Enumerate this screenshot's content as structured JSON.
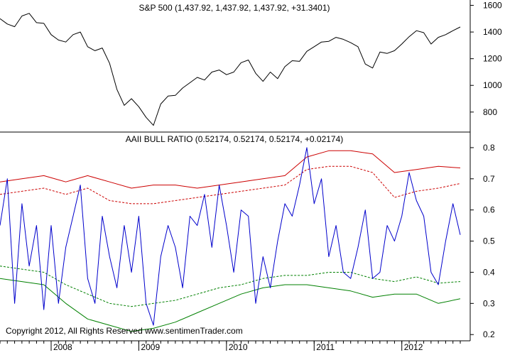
{
  "chart_data": [
    {
      "type": "line",
      "title": "S&P 500 (1,437.92, 1,437.92, 1,437.92, +31.3401)",
      "ylim": [
        650,
        1640
      ],
      "yticks": [
        800,
        1000,
        1200,
        1400,
        1600
      ],
      "grid": false,
      "x_range": [
        "2007-06",
        "2012-09"
      ],
      "series": [
        {
          "color": "#000000",
          "points": [
            [
              "2007-06",
              1500
            ],
            [
              "2007-07",
              1460
            ],
            [
              "2007-08",
              1440
            ],
            [
              "2007-09",
              1520
            ],
            [
              "2007-10",
              1540
            ],
            [
              "2007-11",
              1470
            ],
            [
              "2007-12",
              1465
            ],
            [
              "2008-01",
              1380
            ],
            [
              "2008-02",
              1340
            ],
            [
              "2008-03",
              1325
            ],
            [
              "2008-04",
              1380
            ],
            [
              "2008-05",
              1400
            ],
            [
              "2008-06",
              1290
            ],
            [
              "2008-07",
              1260
            ],
            [
              "2008-08",
              1280
            ],
            [
              "2008-09",
              1165
            ],
            [
              "2008-10",
              970
            ],
            [
              "2008-11",
              850
            ],
            [
              "2008-12",
              900
            ],
            [
              "2009-01",
              840
            ],
            [
              "2009-02",
              760
            ],
            [
              "2009-03",
              700
            ],
            [
              "2009-04",
              860
            ],
            [
              "2009-05",
              920
            ],
            [
              "2009-06",
              925
            ],
            [
              "2009-07",
              980
            ],
            [
              "2009-08",
              1020
            ],
            [
              "2009-09",
              1060
            ],
            [
              "2009-10",
              1040
            ],
            [
              "2009-11",
              1100
            ],
            [
              "2009-12",
              1115
            ],
            [
              "2010-01",
              1080
            ],
            [
              "2010-02",
              1100
            ],
            [
              "2010-03",
              1170
            ],
            [
              "2010-04",
              1190
            ],
            [
              "2010-05",
              1090
            ],
            [
              "2010-06",
              1030
            ],
            [
              "2010-07",
              1100
            ],
            [
              "2010-08",
              1050
            ],
            [
              "2010-09",
              1140
            ],
            [
              "2010-10",
              1185
            ],
            [
              "2010-11",
              1180
            ],
            [
              "2010-12",
              1255
            ],
            [
              "2011-01",
              1290
            ],
            [
              "2011-02",
              1325
            ],
            [
              "2011-03",
              1330
            ],
            [
              "2011-04",
              1360
            ],
            [
              "2011-05",
              1345
            ],
            [
              "2011-06",
              1320
            ],
            [
              "2011-07",
              1290
            ],
            [
              "2011-08",
              1160
            ],
            [
              "2011-09",
              1130
            ],
            [
              "2011-10",
              1250
            ],
            [
              "2011-11",
              1240
            ],
            [
              "2011-12",
              1260
            ],
            [
              "2012-01",
              1310
            ],
            [
              "2012-02",
              1365
            ],
            [
              "2012-03",
              1410
            ],
            [
              "2012-04",
              1395
            ],
            [
              "2012-05",
              1310
            ],
            [
              "2012-06",
              1360
            ],
            [
              "2012-07",
              1380
            ],
            [
              "2012-08",
              1410
            ],
            [
              "2012-09",
              1438
            ]
          ]
        }
      ]
    },
    {
      "type": "line",
      "title": "AAII BULL RATIO (0.52174, 0.52174, 0.52174, +0.02174)",
      "ylim": [
        0.18,
        0.85
      ],
      "yticks": [
        0.2,
        0.3,
        0.4,
        0.5,
        0.6,
        0.7,
        0.8
      ],
      "grid": false,
      "x_range": [
        "2007-06",
        "2012-09"
      ],
      "xticks": [
        "2008",
        "2009",
        "2010",
        "2011",
        "2012"
      ],
      "annotation": "Copyright 2012, All Rights Reserved  www.sentimenTrader.com",
      "series": [
        {
          "color": "#cc0000",
          "dashed": false,
          "points": [
            [
              "2007-06",
              0.69
            ],
            [
              "2007-09",
              0.7
            ],
            [
              "2007-12",
              0.71
            ],
            [
              "2008-03",
              0.69
            ],
            [
              "2008-06",
              0.71
            ],
            [
              "2008-09",
              0.69
            ],
            [
              "2008-12",
              0.67
            ],
            [
              "2009-03",
              0.68
            ],
            [
              "2009-06",
              0.68
            ],
            [
              "2009-09",
              0.67
            ],
            [
              "2009-12",
              0.68
            ],
            [
              "2010-03",
              0.69
            ],
            [
              "2010-06",
              0.7
            ],
            [
              "2010-09",
              0.71
            ],
            [
              "2010-12",
              0.77
            ],
            [
              "2011-03",
              0.79
            ],
            [
              "2011-06",
              0.79
            ],
            [
              "2011-09",
              0.78
            ],
            [
              "2011-12",
              0.72
            ],
            [
              "2012-03",
              0.73
            ],
            [
              "2012-06",
              0.74
            ],
            [
              "2012-09",
              0.735
            ]
          ]
        },
        {
          "color": "#cc0000",
          "dashed": true,
          "points": [
            [
              "2007-06",
              0.65
            ],
            [
              "2007-09",
              0.66
            ],
            [
              "2007-12",
              0.67
            ],
            [
              "2008-03",
              0.65
            ],
            [
              "2008-06",
              0.67
            ],
            [
              "2008-09",
              0.63
            ],
            [
              "2008-12",
              0.62
            ],
            [
              "2009-03",
              0.62
            ],
            [
              "2009-06",
              0.63
            ],
            [
              "2009-09",
              0.64
            ],
            [
              "2009-12",
              0.65
            ],
            [
              "2010-03",
              0.66
            ],
            [
              "2010-06",
              0.67
            ],
            [
              "2010-09",
              0.68
            ],
            [
              "2010-12",
              0.73
            ],
            [
              "2011-03",
              0.74
            ],
            [
              "2011-06",
              0.74
            ],
            [
              "2011-09",
              0.72
            ],
            [
              "2011-12",
              0.64
            ],
            [
              "2012-03",
              0.66
            ],
            [
              "2012-06",
              0.67
            ],
            [
              "2012-09",
              0.685
            ]
          ]
        },
        {
          "color": "#008000",
          "dashed": true,
          "points": [
            [
              "2007-06",
              0.42
            ],
            [
              "2007-09",
              0.41
            ],
            [
              "2007-12",
              0.4
            ],
            [
              "2008-03",
              0.36
            ],
            [
              "2008-06",
              0.33
            ],
            [
              "2008-09",
              0.3
            ],
            [
              "2008-12",
              0.29
            ],
            [
              "2009-03",
              0.3
            ],
            [
              "2009-06",
              0.31
            ],
            [
              "2009-09",
              0.33
            ],
            [
              "2009-12",
              0.35
            ],
            [
              "2010-03",
              0.36
            ],
            [
              "2010-06",
              0.38
            ],
            [
              "2010-09",
              0.39
            ],
            [
              "2010-12",
              0.39
            ],
            [
              "2011-03",
              0.4
            ],
            [
              "2011-06",
              0.4
            ],
            [
              "2011-09",
              0.38
            ],
            [
              "2011-12",
              0.37
            ],
            [
              "2012-03",
              0.385
            ],
            [
              "2012-06",
              0.365
            ],
            [
              "2012-09",
              0.37
            ]
          ]
        },
        {
          "color": "#008000",
          "dashed": false,
          "points": [
            [
              "2007-06",
              0.38
            ],
            [
              "2007-09",
              0.37
            ],
            [
              "2007-12",
              0.36
            ],
            [
              "2008-03",
              0.3
            ],
            [
              "2008-06",
              0.25
            ],
            [
              "2008-09",
              0.23
            ],
            [
              "2008-12",
              0.21
            ],
            [
              "2009-03",
              0.22
            ],
            [
              "2009-06",
              0.24
            ],
            [
              "2009-09",
              0.27
            ],
            [
              "2009-12",
              0.3
            ],
            [
              "2010-03",
              0.33
            ],
            [
              "2010-06",
              0.35
            ],
            [
              "2010-09",
              0.36
            ],
            [
              "2010-12",
              0.36
            ],
            [
              "2011-03",
              0.35
            ],
            [
              "2011-06",
              0.34
            ],
            [
              "2011-09",
              0.32
            ],
            [
              "2011-12",
              0.33
            ],
            [
              "2012-03",
              0.33
            ],
            [
              "2012-06",
              0.3
            ],
            [
              "2012-09",
              0.315
            ]
          ]
        },
        {
          "color": "#0000cc",
          "dashed": false,
          "points": [
            [
              "2007-06",
              0.55
            ],
            [
              "2007-07",
              0.7
            ],
            [
              "2007-08",
              0.3
            ],
            [
              "2007-09",
              0.62
            ],
            [
              "2007-10",
              0.42
            ],
            [
              "2007-11",
              0.55
            ],
            [
              "2007-12",
              0.28
            ],
            [
              "2008-01",
              0.55
            ],
            [
              "2008-02",
              0.3
            ],
            [
              "2008-03",
              0.48
            ],
            [
              "2008-04",
              0.58
            ],
            [
              "2008-05",
              0.68
            ],
            [
              "2008-06",
              0.38
            ],
            [
              "2008-07",
              0.3
            ],
            [
              "2008-08",
              0.58
            ],
            [
              "2008-09",
              0.45
            ],
            [
              "2008-10",
              0.35
            ],
            [
              "2008-11",
              0.55
            ],
            [
              "2008-12",
              0.4
            ],
            [
              "2009-01",
              0.58
            ],
            [
              "2009-02",
              0.3
            ],
            [
              "2009-03",
              0.23
            ],
            [
              "2009-04",
              0.45
            ],
            [
              "2009-05",
              0.55
            ],
            [
              "2009-06",
              0.48
            ],
            [
              "2009-07",
              0.35
            ],
            [
              "2009-08",
              0.58
            ],
            [
              "2009-09",
              0.55
            ],
            [
              "2009-10",
              0.65
            ],
            [
              "2009-11",
              0.48
            ],
            [
              "2009-12",
              0.68
            ],
            [
              "2010-01",
              0.55
            ],
            [
              "2010-02",
              0.4
            ],
            [
              "2010-03",
              0.6
            ],
            [
              "2010-04",
              0.58
            ],
            [
              "2010-05",
              0.3
            ],
            [
              "2010-06",
              0.45
            ],
            [
              "2010-07",
              0.35
            ],
            [
              "2010-08",
              0.5
            ],
            [
              "2010-09",
              0.62
            ],
            [
              "2010-10",
              0.58
            ],
            [
              "2010-11",
              0.68
            ],
            [
              "2010-12",
              0.8
            ],
            [
              "2011-01",
              0.62
            ],
            [
              "2011-02",
              0.7
            ],
            [
              "2011-03",
              0.45
            ],
            [
              "2011-04",
              0.55
            ],
            [
              "2011-05",
              0.4
            ],
            [
              "2011-06",
              0.38
            ],
            [
              "2011-07",
              0.48
            ],
            [
              "2011-08",
              0.6
            ],
            [
              "2011-09",
              0.38
            ],
            [
              "2011-10",
              0.4
            ],
            [
              "2011-11",
              0.55
            ],
            [
              "2011-12",
              0.5
            ],
            [
              "2012-01",
              0.58
            ],
            [
              "2012-02",
              0.72
            ],
            [
              "2012-03",
              0.63
            ],
            [
              "2012-04",
              0.58
            ],
            [
              "2012-05",
              0.4
            ],
            [
              "2012-06",
              0.36
            ],
            [
              "2012-07",
              0.5
            ],
            [
              "2012-08",
              0.62
            ],
            [
              "2012-09",
              0.52
            ]
          ]
        }
      ]
    }
  ]
}
